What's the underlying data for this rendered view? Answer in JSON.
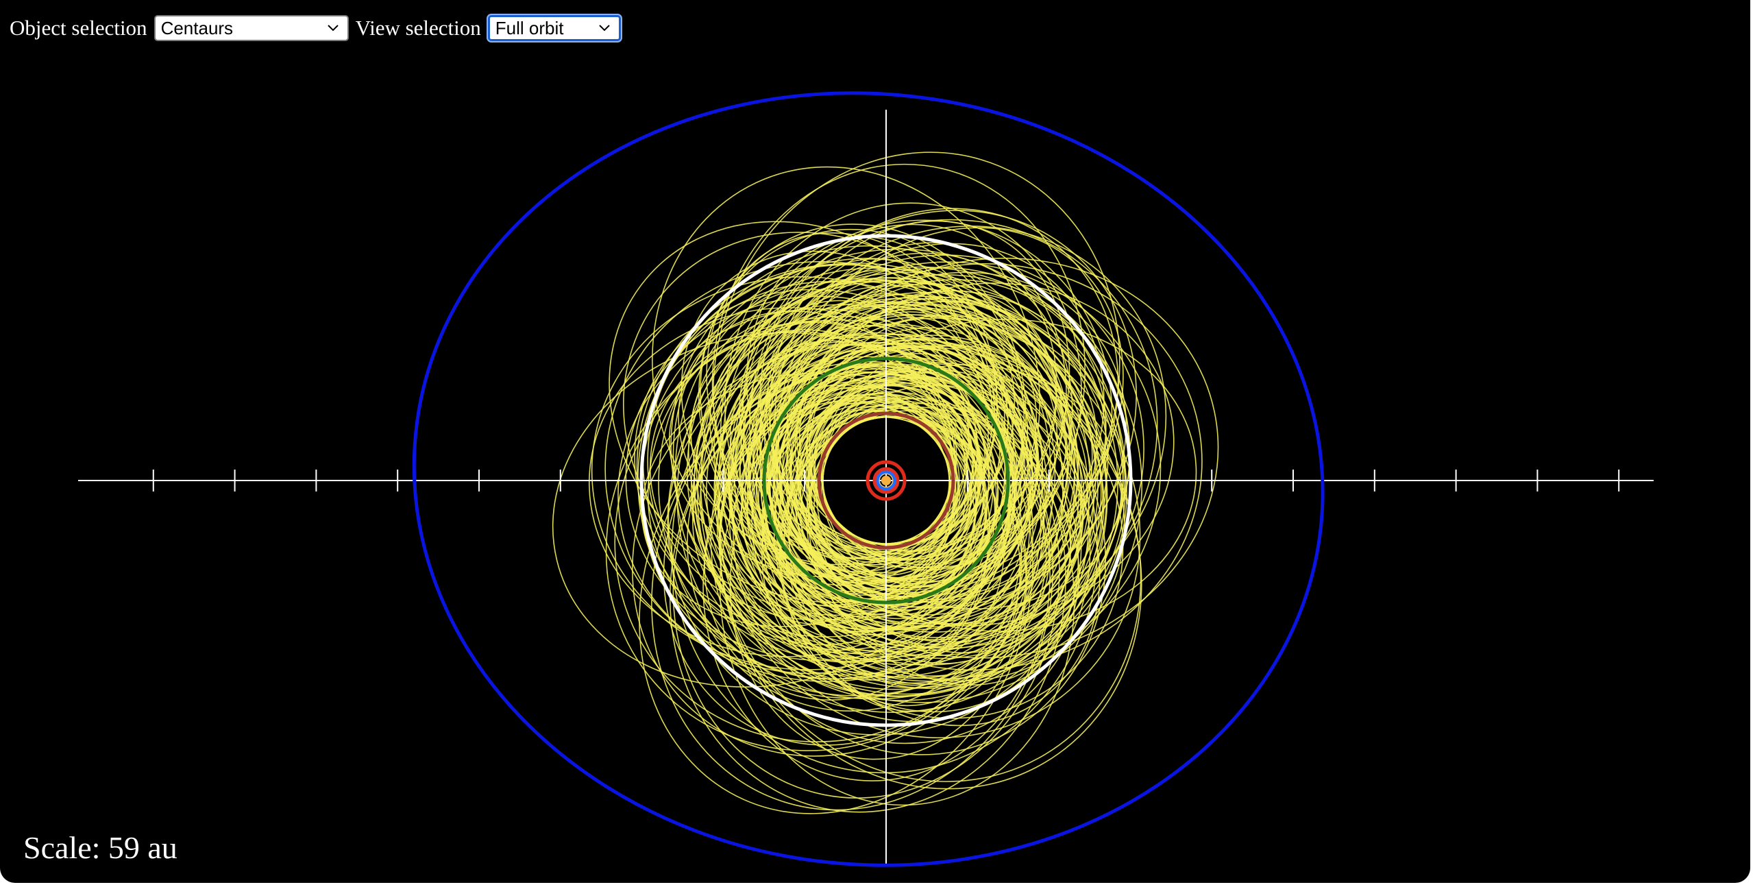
{
  "controls": {
    "object_label": "Object selection",
    "object_value": "Centaurs",
    "view_label": "View selection",
    "view_value": "Full orbit"
  },
  "scale": {
    "text": "Scale: 59 au",
    "value_au": 59
  },
  "icons": {
    "dropdown": "chevron-down-icon",
    "sun": "sun-icon"
  },
  "plot": {
    "background": "#000000",
    "axis_color": "#ffffff",
    "tick_step_au": 10,
    "sun_color": "#f5b040",
    "centaur_orbit_color": "#f5f05a",
    "centaur_orbit_count": 220,
    "planet_orbits": [
      {
        "name": "Mercury",
        "radius_au": 0.39,
        "color": "#b0b0b0"
      },
      {
        "name": "Venus",
        "radius_au": 0.72,
        "color": "#e0c080"
      },
      {
        "name": "Earth",
        "radius_au": 1.0,
        "color": "#1e6cff"
      },
      {
        "name": "Mars",
        "radius_au": 1.52,
        "color": "#e03020"
      },
      {
        "name": "Jupiter",
        "radius_au": 5.2,
        "color": "#e02a1a"
      },
      {
        "name": "Saturn",
        "radius_au": 9.58,
        "color": "#9a3a2c"
      },
      {
        "name": "Uranus",
        "radius_au": 19.2,
        "color": "#2a7a1a"
      },
      {
        "name": "Neptune",
        "radius_au": 30.05,
        "color": "#ffffff"
      },
      {
        "name": "Pluto",
        "radius_au": 39.5,
        "eccentricity": 0.25,
        "color": "#0a14e0"
      }
    ]
  }
}
